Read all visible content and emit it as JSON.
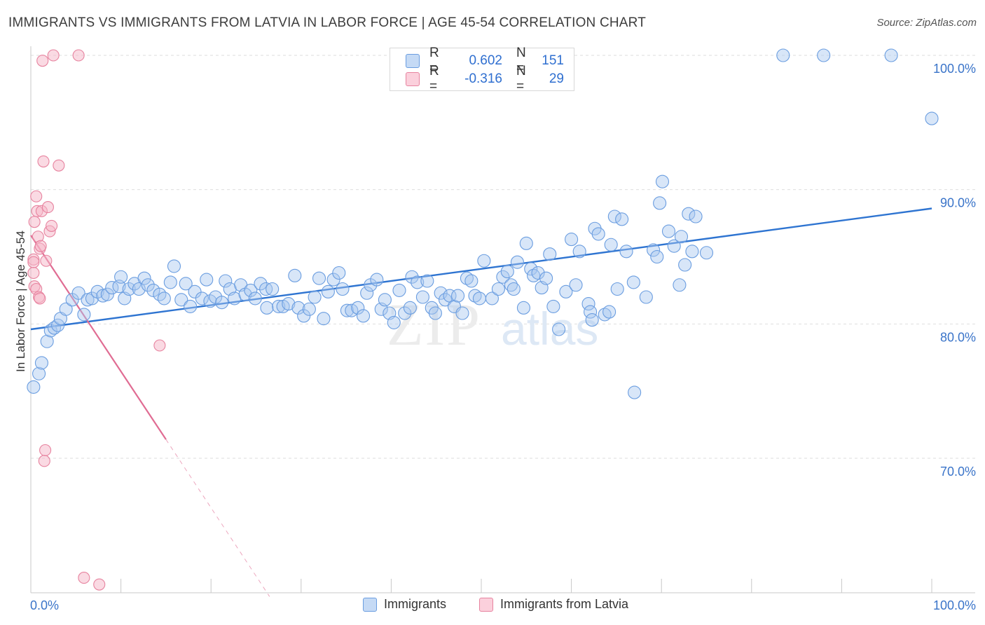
{
  "title": "IMMIGRANTS VS IMMIGRANTS FROM LATVIA IN LABOR FORCE | AGE 45-54 CORRELATION CHART",
  "source": "Source: ZipAtlas.com",
  "watermark": {
    "zip": "ZIP",
    "atlas": "atlas"
  },
  "legend_top": {
    "rows": [
      {
        "r_label": "R =",
        "r_value": "0.602",
        "n_label": "N =",
        "n_value": "151"
      },
      {
        "r_label": "R =",
        "r_value": "-0.316",
        "n_label": "N =",
        "n_value": "29"
      }
    ]
  },
  "legend_bottom": {
    "items": [
      "Immigrants",
      "Immigrants from Latvia"
    ]
  },
  "colors": {
    "blue_fill": "#a9c8f0",
    "blue_stroke": "#6a9de0",
    "blue_line": "#2e74d1",
    "pink_fill": "#f6b6c8",
    "pink_stroke": "#e7839f",
    "pink_line": "#e06c93",
    "tick_text": "#3a74c9",
    "grid": "#dedede"
  },
  "chart_data": {
    "type": "scatter",
    "title": "IMMIGRANTS VS IMMIGRANTS FROM LATVIA IN LABOR FORCE | AGE 45-54 CORRELATION CHART",
    "xlabel": "",
    "ylabel": "In Labor Force | Age 45-54",
    "xlim": [
      0,
      100
    ],
    "ylim": [
      60.5,
      103.5
    ],
    "x_tick_labels": [
      "0.0%",
      "100.0%"
    ],
    "y_ticks": [
      {
        "value": 100,
        "label": "100.0%"
      },
      {
        "value": 90,
        "label": "90.0%"
      },
      {
        "value": 80,
        "label": "80.0%"
      },
      {
        "value": 70,
        "label": "70.0%"
      }
    ],
    "grid": true,
    "legend_position": "bottom",
    "series": [
      {
        "name": "Immigrants",
        "color": "#a9c8f0",
        "trend": {
          "x": [
            0,
            100
          ],
          "y": [
            79.6,
            88.6
          ]
        },
        "points": [
          [
            0.3,
            75.3
          ],
          [
            0.9,
            76.3
          ],
          [
            1.2,
            77.1
          ],
          [
            1.8,
            78.7
          ],
          [
            2.2,
            79.5
          ],
          [
            2.6,
            79.7
          ],
          [
            3.0,
            79.9
          ],
          [
            3.3,
            80.4
          ],
          [
            3.9,
            81.1
          ],
          [
            4.6,
            81.8
          ],
          [
            5.3,
            82.3
          ],
          [
            5.9,
            80.7
          ],
          [
            6.3,
            81.8
          ],
          [
            6.8,
            81.9
          ],
          [
            7.4,
            82.4
          ],
          [
            8.0,
            82.1
          ],
          [
            8.5,
            82.2
          ],
          [
            9.0,
            82.7
          ],
          [
            9.8,
            82.8
          ],
          [
            10.0,
            83.5
          ],
          [
            10.4,
            81.9
          ],
          [
            10.9,
            82.6
          ],
          [
            11.5,
            83.0
          ],
          [
            12.0,
            82.6
          ],
          [
            12.6,
            83.4
          ],
          [
            13.0,
            82.9
          ],
          [
            13.6,
            82.5
          ],
          [
            14.3,
            82.2
          ],
          [
            14.8,
            81.9
          ],
          [
            15.5,
            83.1
          ],
          [
            15.9,
            84.3
          ],
          [
            16.7,
            81.8
          ],
          [
            17.2,
            83.0
          ],
          [
            17.7,
            81.3
          ],
          [
            18.2,
            82.4
          ],
          [
            19.0,
            81.9
          ],
          [
            19.5,
            83.3
          ],
          [
            19.9,
            81.7
          ],
          [
            20.5,
            82.0
          ],
          [
            21.2,
            81.6
          ],
          [
            21.6,
            83.2
          ],
          [
            22.1,
            82.6
          ],
          [
            22.6,
            81.9
          ],
          [
            23.3,
            82.9
          ],
          [
            23.8,
            82.2
          ],
          [
            24.4,
            82.5
          ],
          [
            24.9,
            81.9
          ],
          [
            25.5,
            83.0
          ],
          [
            26.1,
            82.6
          ],
          [
            26.2,
            81.2
          ],
          [
            26.8,
            82.6
          ],
          [
            27.5,
            81.3
          ],
          [
            28.0,
            81.3
          ],
          [
            28.6,
            81.5
          ],
          [
            29.3,
            83.6
          ],
          [
            29.7,
            81.2
          ],
          [
            30.3,
            80.6
          ],
          [
            30.9,
            81.1
          ],
          [
            31.5,
            82.0
          ],
          [
            32.0,
            83.4
          ],
          [
            32.5,
            80.4
          ],
          [
            33.0,
            82.4
          ],
          [
            33.6,
            83.3
          ],
          [
            34.2,
            83.8
          ],
          [
            34.6,
            82.6
          ],
          [
            35.1,
            81.0
          ],
          [
            35.6,
            81.0
          ],
          [
            36.3,
            81.2
          ],
          [
            36.9,
            80.6
          ],
          [
            37.3,
            82.3
          ],
          [
            37.7,
            82.9
          ],
          [
            38.4,
            83.3
          ],
          [
            38.9,
            81.1
          ],
          [
            39.3,
            81.8
          ],
          [
            39.8,
            80.8
          ],
          [
            40.3,
            80.1
          ],
          [
            40.9,
            82.5
          ],
          [
            41.5,
            80.8
          ],
          [
            42.1,
            81.2
          ],
          [
            42.3,
            83.5
          ],
          [
            42.9,
            83.1
          ],
          [
            43.5,
            82.0
          ],
          [
            44.0,
            83.2
          ],
          [
            44.5,
            81.2
          ],
          [
            44.9,
            80.8
          ],
          [
            45.5,
            82.3
          ],
          [
            46.0,
            81.8
          ],
          [
            46.5,
            82.1
          ],
          [
            47.0,
            81.3
          ],
          [
            47.4,
            82.1
          ],
          [
            47.9,
            80.8
          ],
          [
            48.4,
            83.4
          ],
          [
            48.9,
            83.2
          ],
          [
            49.3,
            82.1
          ],
          [
            49.8,
            81.9
          ],
          [
            50.3,
            84.7
          ],
          [
            51.2,
            81.9
          ],
          [
            51.9,
            82.6
          ],
          [
            52.4,
            83.5
          ],
          [
            52.9,
            83.9
          ],
          [
            53.3,
            82.9
          ],
          [
            53.6,
            82.6
          ],
          [
            54.0,
            84.6
          ],
          [
            54.7,
            81.2
          ],
          [
            55.0,
            86.0
          ],
          [
            55.5,
            84.1
          ],
          [
            55.8,
            83.6
          ],
          [
            56.3,
            83.8
          ],
          [
            56.7,
            82.7
          ],
          [
            57.2,
            83.4
          ],
          [
            57.6,
            85.2
          ],
          [
            58.0,
            81.3
          ],
          [
            58.6,
            79.6
          ],
          [
            59.4,
            82.4
          ],
          [
            60.0,
            86.3
          ],
          [
            60.5,
            82.9
          ],
          [
            60.9,
            85.4
          ],
          [
            61.9,
            81.5
          ],
          [
            62.1,
            80.9
          ],
          [
            62.3,
            80.3
          ],
          [
            62.6,
            87.1
          ],
          [
            63.0,
            86.7
          ],
          [
            63.7,
            80.7
          ],
          [
            64.2,
            80.9
          ],
          [
            64.4,
            85.9
          ],
          [
            64.8,
            88.0
          ],
          [
            65.1,
            82.6
          ],
          [
            65.6,
            87.8
          ],
          [
            66.1,
            85.4
          ],
          [
            66.9,
            83.1
          ],
          [
            67.0,
            74.9
          ],
          [
            68.3,
            82.0
          ],
          [
            69.1,
            85.5
          ],
          [
            69.5,
            85.0
          ],
          [
            69.8,
            89.0
          ],
          [
            70.1,
            90.6
          ],
          [
            70.8,
            86.9
          ],
          [
            71.4,
            85.8
          ],
          [
            72.0,
            82.9
          ],
          [
            72.2,
            86.5
          ],
          [
            72.6,
            84.4
          ],
          [
            73.0,
            88.2
          ],
          [
            73.4,
            85.4
          ],
          [
            73.8,
            88.0
          ],
          [
            75.0,
            85.3
          ],
          [
            83.5,
            100.0
          ],
          [
            88.0,
            100.0
          ],
          [
            95.5,
            100.0
          ],
          [
            100.0,
            95.3
          ]
        ]
      },
      {
        "name": "Immigrants from Latvia",
        "color": "#f6b6c8",
        "trend": {
          "x": [
            0,
            15
          ],
          "y": [
            86.6,
            71.4
          ],
          "dashed_to": {
            "x": 26.5,
            "y": 59.7
          }
        },
        "points": [
          [
            0.3,
            84.8
          ],
          [
            0.3,
            84.6
          ],
          [
            0.3,
            83.8
          ],
          [
            0.4,
            82.8
          ],
          [
            0.4,
            87.6
          ],
          [
            0.6,
            82.6
          ],
          [
            0.6,
            89.5
          ],
          [
            0.7,
            88.4
          ],
          [
            0.8,
            86.5
          ],
          [
            0.9,
            82.0
          ],
          [
            1.0,
            81.9
          ],
          [
            1.0,
            85.6
          ],
          [
            1.1,
            85.8
          ],
          [
            1.2,
            88.4
          ],
          [
            1.3,
            99.6
          ],
          [
            1.4,
            92.1
          ],
          [
            1.5,
            69.8
          ],
          [
            1.6,
            70.6
          ],
          [
            1.7,
            84.7
          ],
          [
            1.9,
            88.7
          ],
          [
            2.1,
            86.9
          ],
          [
            2.3,
            87.3
          ],
          [
            2.5,
            100.0
          ],
          [
            3.1,
            91.8
          ],
          [
            5.3,
            100.0
          ],
          [
            5.9,
            61.1
          ],
          [
            7.6,
            60.6
          ],
          [
            14.3,
            78.4
          ]
        ]
      }
    ]
  }
}
